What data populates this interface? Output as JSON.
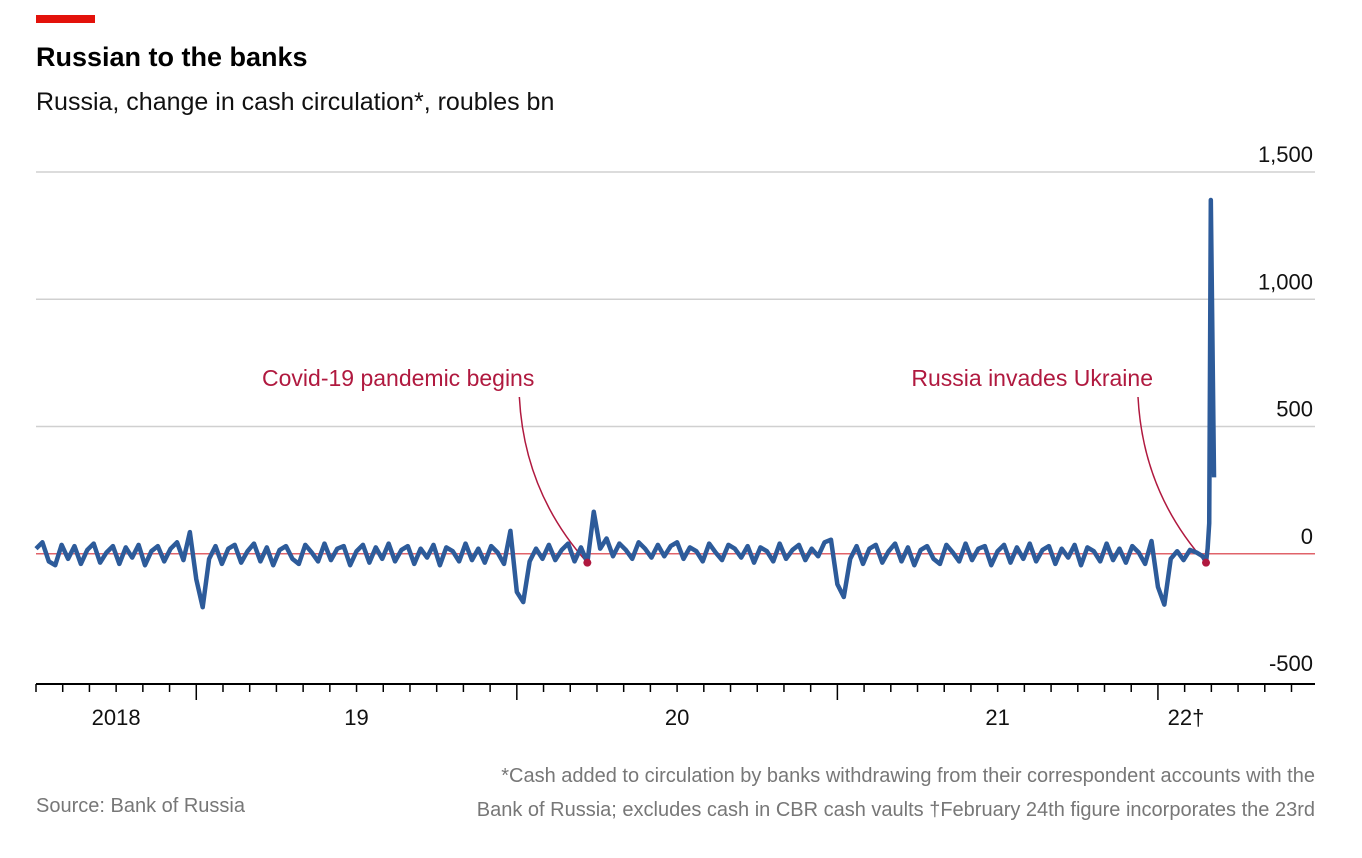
{
  "chart_data": {
    "type": "line",
    "title": "Russian to the banks",
    "subtitle": "Russia, change in cash circulation*, roubles bn",
    "source": "Source: Bank of Russia",
    "footnote": [
      "*Cash added to circulation by banks withdrawing from their correspondent accounts with the",
      "Bank of Russia; excludes cash in CBR cash vaults †February 24th figure incorporates the 23rd"
    ],
    "color": "#2d5b9a",
    "grid": true,
    "xlim": [
      2018.5,
      2022.49
    ],
    "ylim": [
      -500,
      1500
    ],
    "yticks": [
      -500,
      0,
      500,
      {
        "value": 1000,
        "label": "1,000"
      },
      {
        "value": 1500,
        "label": "1,500"
      }
    ],
    "xticks": [
      {
        "value": 2018,
        "label": "2018"
      },
      {
        "value": 2019,
        "label": "19"
      },
      {
        "value": 2020,
        "label": "20"
      },
      {
        "value": 2021,
        "label": "21"
      },
      {
        "value": 2022,
        "label": "22†"
      }
    ],
    "annotations": [
      {
        "text": "Covid-19 pandemic begins",
        "x": 2020.22,
        "y": -35
      },
      {
        "text": "Russia invades Ukraine",
        "x": 2022.15,
        "y": -35
      }
    ],
    "x": [
      2018.5,
      2018.52,
      2018.54,
      2018.56,
      2018.58,
      2018.6,
      2018.62,
      2018.64,
      2018.66,
      2018.68,
      2018.7,
      2018.72,
      2018.74,
      2018.76,
      2018.78,
      2018.8,
      2018.82,
      2018.84,
      2018.86,
      2018.88,
      2018.9,
      2018.92,
      2018.94,
      2018.96,
      2018.98,
      2019,
      2019.02,
      2019.04,
      2019.06,
      2019.08,
      2019.1,
      2019.12,
      2019.14,
      2019.16,
      2019.18,
      2019.2,
      2019.22,
      2019.24,
      2019.26,
      2019.28,
      2019.3,
      2019.32,
      2019.34,
      2019.36,
      2019.38,
      2019.4,
      2019.42,
      2019.44,
      2019.46,
      2019.48,
      2019.5,
      2019.52,
      2019.54,
      2019.56,
      2019.58,
      2019.6,
      2019.62,
      2019.64,
      2019.66,
      2019.68,
      2019.7,
      2019.72,
      2019.74,
      2019.76,
      2019.78,
      2019.8,
      2019.82,
      2019.84,
      2019.86,
      2019.88,
      2019.9,
      2019.92,
      2019.94,
      2019.96,
      2019.98,
      2020,
      2020.02,
      2020.04,
      2020.06,
      2020.08,
      2020.1,
      2020.12,
      2020.14,
      2020.16,
      2020.18,
      2020.2,
      2020.22,
      2020.24,
      2020.26,
      2020.28,
      2020.3,
      2020.32,
      2020.34,
      2020.36,
      2020.38,
      2020.4,
      2020.42,
      2020.44,
      2020.46,
      2020.48,
      2020.5,
      2020.52,
      2020.54,
      2020.56,
      2020.58,
      2020.6,
      2020.62,
      2020.64,
      2020.66,
      2020.68,
      2020.7,
      2020.72,
      2020.74,
      2020.76,
      2020.78,
      2020.8,
      2020.82,
      2020.84,
      2020.86,
      2020.88,
      2020.9,
      2020.92,
      2020.94,
      2020.96,
      2020.98,
      2021,
      2021.02,
      2021.04,
      2021.06,
      2021.08,
      2021.1,
      2021.12,
      2021.14,
      2021.16,
      2021.18,
      2021.2,
      2021.22,
      2021.24,
      2021.26,
      2021.28,
      2021.3,
      2021.32,
      2021.34,
      2021.36,
      2021.38,
      2021.4,
      2021.42,
      2021.44,
      2021.46,
      2021.48,
      2021.5,
      2021.52,
      2021.54,
      2021.56,
      2021.58,
      2021.6,
      2021.62,
      2021.64,
      2021.66,
      2021.68,
      2021.7,
      2021.72,
      2021.74,
      2021.76,
      2021.78,
      2021.8,
      2021.82,
      2021.84,
      2021.86,
      2021.88,
      2021.9,
      2021.92,
      2021.94,
      2021.96,
      2021.98,
      2022,
      2022.02,
      2022.04,
      2022.06,
      2022.08,
      2022.1,
      2022.12,
      2022.14,
      2022.15,
      2022.155,
      2022.16,
      2022.165,
      2022.175
    ],
    "values": [
      20,
      45,
      -30,
      -45,
      35,
      -20,
      30,
      -40,
      15,
      40,
      -35,
      5,
      30,
      -40,
      25,
      -15,
      35,
      -45,
      10,
      30,
      -30,
      20,
      45,
      -25,
      85,
      -100,
      -210,
      -20,
      30,
      -40,
      20,
      35,
      -35,
      10,
      40,
      -30,
      25,
      -45,
      15,
      30,
      -20,
      -40,
      35,
      5,
      -30,
      40,
      -25,
      20,
      30,
      -45,
      10,
      35,
      -35,
      25,
      -20,
      40,
      -30,
      15,
      30,
      -40,
      20,
      -15,
      35,
      -45,
      25,
      10,
      -30,
      40,
      -25,
      20,
      -35,
      30,
      5,
      -40,
      90,
      -150,
      -190,
      -30,
      20,
      -20,
      35,
      -25,
      15,
      40,
      -30,
      25,
      -35,
      165,
      20,
      60,
      -10,
      40,
      15,
      -20,
      45,
      20,
      -15,
      35,
      -10,
      30,
      45,
      -20,
      25,
      10,
      -30,
      40,
      5,
      -25,
      35,
      20,
      -15,
      30,
      -35,
      25,
      10,
      -30,
      40,
      -20,
      15,
      35,
      -25,
      20,
      -10,
      45,
      55,
      -120,
      -170,
      -20,
      30,
      -40,
      20,
      35,
      -35,
      10,
      40,
      -30,
      25,
      -45,
      15,
      30,
      -20,
      -40,
      35,
      5,
      -30,
      40,
      -25,
      20,
      30,
      -45,
      10,
      35,
      -35,
      25,
      -20,
      40,
      -30,
      15,
      30,
      -40,
      20,
      -15,
      35,
      -45,
      25,
      10,
      -30,
      40,
      -25,
      20,
      -35,
      30,
      5,
      -40,
      50,
      -130,
      -200,
      -20,
      10,
      -25,
      15,
      5,
      -10,
      -35,
      20,
      120,
      1390,
      300
    ]
  }
}
